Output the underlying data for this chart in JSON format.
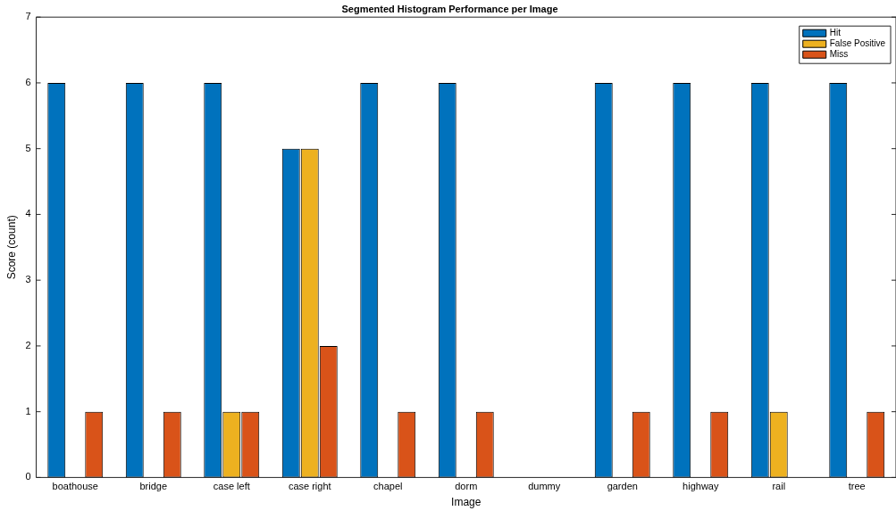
{
  "chart_data": {
    "type": "bar",
    "title": "Segmented Histogram Performance per Image",
    "xlabel": "Image",
    "ylabel": "Score (count)",
    "categories": [
      "boathouse",
      "bridge",
      "case left",
      "case right",
      "chapel",
      "dorm",
      "dummy",
      "garden",
      "highway",
      "rail",
      "tree"
    ],
    "series": [
      {
        "name": "Hit",
        "color": "#0072bd",
        "values": [
          6,
          6,
          6,
          5,
          6,
          6,
          0,
          6,
          6,
          6,
          6
        ]
      },
      {
        "name": "False Positive",
        "color": "#edb120",
        "values": [
          0,
          0,
          1,
          5,
          0,
          0,
          0,
          0,
          0,
          1,
          0
        ]
      },
      {
        "name": "Miss",
        "color": "#d95319",
        "values": [
          1,
          1,
          1,
          2,
          1,
          1,
          0,
          1,
          1,
          0,
          1
        ]
      }
    ],
    "ylim": [
      0,
      7
    ],
    "yticks": [
      0,
      1,
      2,
      3,
      4,
      5,
      6,
      7
    ],
    "grid": false,
    "legend": "top right"
  }
}
